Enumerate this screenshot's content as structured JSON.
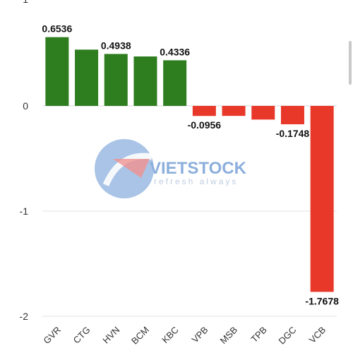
{
  "chart_data": {
    "type": "bar",
    "categories": [
      "GVR",
      "CTG",
      "HVN",
      "BCM",
      "KBC",
      "VPB",
      "MSB",
      "TPB",
      "DGC",
      "VCB"
    ],
    "values": [
      0.6536,
      0.535,
      0.4938,
      0.47,
      0.4336,
      -0.0956,
      -0.095,
      -0.13,
      -0.1748,
      -1.7678
    ],
    "data_labels": [
      {
        "index": 0,
        "text": "0.6536"
      },
      {
        "index": 2,
        "text": "0.4938"
      },
      {
        "index": 4,
        "text": "0.4336"
      },
      {
        "index": 5,
        "text": "-0.0956"
      },
      {
        "index": 8,
        "text": "-0.1748"
      },
      {
        "index": 9,
        "text": "-1.7678"
      }
    ],
    "yticks": [
      {
        "value": 0,
        "label": "0"
      },
      {
        "value": -1,
        "label": "-1"
      },
      {
        "value": -2,
        "label": "-2"
      }
    ],
    "top_tick_label": "1",
    "ylim": [
      -2,
      1
    ],
    "grid": true,
    "colors": {
      "positive": "#2e7d1f",
      "negative": "#e8382a"
    },
    "title": "",
    "xlabel": "",
    "ylabel": ""
  },
  "watermark": {
    "logo_text": "VIETSTOCK",
    "tagline": "refresh always",
    "colors": {
      "blue": "#2f6fc1",
      "red": "#e23a35"
    }
  }
}
